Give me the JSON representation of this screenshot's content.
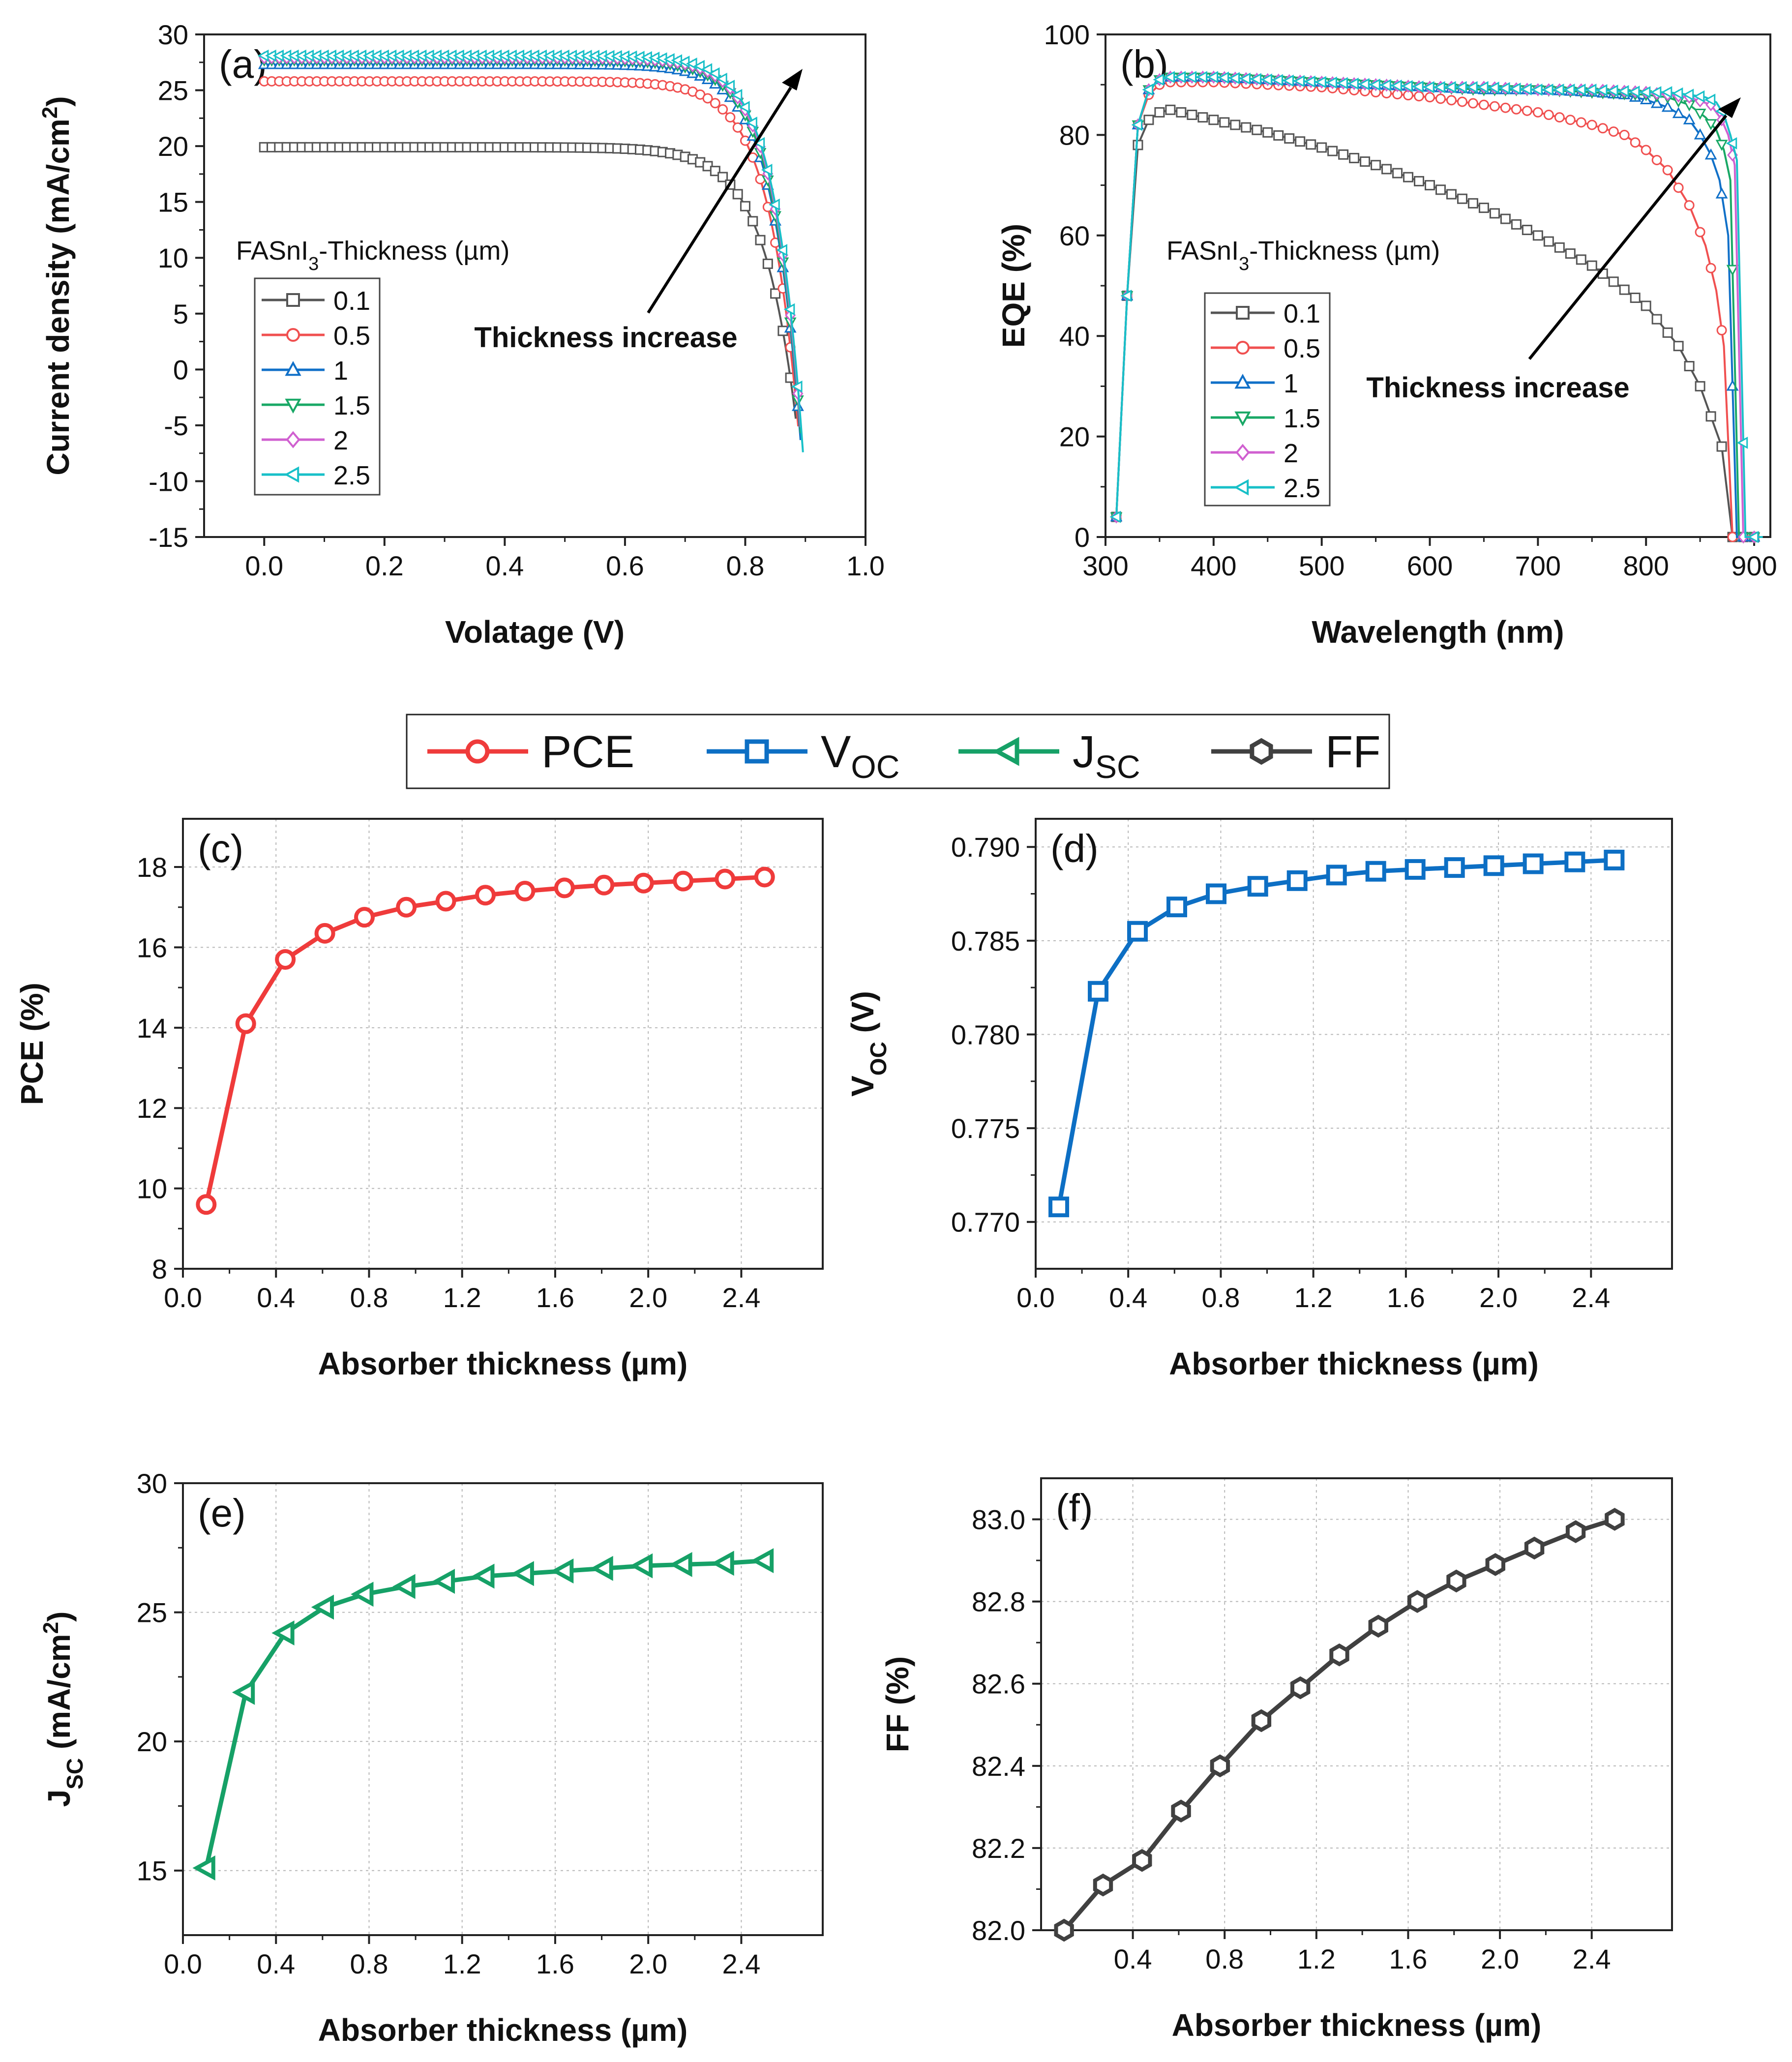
{
  "figure_legend": {
    "items": [
      {
        "label": "PCE",
        "sub": "",
        "color": "#ef3b3b",
        "marker": "circle"
      },
      {
        "label": "V",
        "sub": "OC",
        "color": "#0d6fc4",
        "marker": "square"
      },
      {
        "label": "J",
        "sub": "SC",
        "color": "#16a167",
        "marker": "triangle-left"
      },
      {
        "label": "FF",
        "sub": "",
        "color": "#404040",
        "marker": "hexagon"
      }
    ]
  },
  "chart_data": [
    {
      "id": "a",
      "panel_label": "(a)",
      "type": "line",
      "xlabel": "Volatage (V)",
      "ylabel": "Current density (mA/cm²)",
      "xlim": [
        -0.1,
        1.0
      ],
      "ylim": [
        -15,
        30
      ],
      "xticks": [
        0.0,
        0.2,
        0.4,
        0.6,
        0.8,
        1.0
      ],
      "xtick_labels": [
        "0.0",
        "0.2",
        "0.4",
        "0.6",
        "0.8",
        "1.0"
      ],
      "yticks": [
        -15,
        -10,
        -5,
        0,
        5,
        10,
        15,
        20,
        25,
        30
      ],
      "ytick_labels": [
        "-15",
        "-10",
        "-5",
        "0",
        "5",
        "10",
        "15",
        "20",
        "25",
        "30"
      ],
      "legend_title": "FASnI3-Thickness (µm)",
      "annotation": "Thickness increase",
      "series": [
        {
          "name": "0.1",
          "color": "#555555",
          "marker": "square",
          "jsc": 19.9,
          "voc": 0.873,
          "knee": 0.055
        },
        {
          "name": "0.5",
          "color": "#f05050",
          "marker": "circle",
          "jsc": 25.8,
          "voc": 0.879,
          "knee": 0.05
        },
        {
          "name": "1",
          "color": "#1070c8",
          "marker": "triangle-up",
          "jsc": 27.3,
          "voc": 0.882,
          "knee": 0.048
        },
        {
          "name": "1.5",
          "color": "#19a866",
          "marker": "triangle-down",
          "jsc": 27.7,
          "voc": 0.883,
          "knee": 0.048
        },
        {
          "name": "2",
          "color": "#d060d0",
          "marker": "diamond",
          "jsc": 27.9,
          "voc": 0.884,
          "knee": 0.047
        },
        {
          "name": "2.5",
          "color": "#18c0c8",
          "marker": "triangle-left",
          "jsc": 28.1,
          "voc": 0.885,
          "knee": 0.047
        }
      ]
    },
    {
      "id": "b",
      "panel_label": "(b)",
      "type": "line",
      "xlabel": "Wavelength (nm)",
      "ylabel": "EQE (%)",
      "xlim": [
        300,
        915
      ],
      "ylim": [
        0,
        100
      ],
      "xticks": [
        300,
        400,
        500,
        600,
        700,
        800,
        900
      ],
      "xtick_labels": [
        "300",
        "400",
        "500",
        "600",
        "700",
        "800",
        "900"
      ],
      "yticks": [
        0,
        20,
        40,
        60,
        80,
        100
      ],
      "ytick_labels": [
        "0",
        "20",
        "40",
        "60",
        "80",
        "100"
      ],
      "legend_title": "FASnI3-Thickness (µm)",
      "annotation": "Thickness increase",
      "series": [
        {
          "name": "0.1",
          "color": "#555555",
          "marker": "square",
          "x": [
            310,
            320,
            330,
            340,
            350,
            360,
            380,
            400,
            450,
            500,
            550,
            600,
            650,
            700,
            750,
            800,
            830,
            850,
            870,
            880,
            890,
            900
          ],
          "y": [
            4,
            48,
            78,
            83,
            84.5,
            85,
            84,
            83,
            80.5,
            77.5,
            74,
            70,
            65.5,
            60,
            54,
            46,
            38,
            30,
            18,
            0,
            0,
            0
          ]
        },
        {
          "name": "0.5",
          "color": "#f05050",
          "marker": "circle",
          "x": [
            310,
            320,
            330,
            340,
            350,
            360,
            400,
            450,
            500,
            550,
            600,
            650,
            700,
            750,
            780,
            800,
            820,
            840,
            855,
            865,
            872,
            880,
            890,
            900
          ],
          "y": [
            4,
            48,
            82,
            88,
            90,
            90.5,
            90.5,
            90,
            89.5,
            88.5,
            87.5,
            86,
            84.5,
            82,
            80,
            77,
            73,
            66,
            58,
            49,
            38,
            0,
            0,
            0
          ]
        },
        {
          "name": "1",
          "color": "#1070c8",
          "marker": "triangle-up",
          "x": [
            310,
            320,
            330,
            340,
            350,
            360,
            400,
            450,
            500,
            550,
            600,
            650,
            700,
            750,
            780,
            800,
            820,
            840,
            850,
            860,
            868,
            876,
            884,
            892,
            900
          ],
          "y": [
            4,
            48,
            82,
            89,
            91,
            91.5,
            91.5,
            91,
            90.5,
            90,
            89.5,
            89,
            89,
            88.5,
            88,
            87,
            85.5,
            83,
            80,
            76,
            71,
            60,
            0,
            0,
            0
          ]
        },
        {
          "name": "1.5",
          "color": "#19a866",
          "marker": "triangle-down",
          "x": [
            310,
            320,
            330,
            340,
            350,
            360,
            400,
            450,
            500,
            550,
            600,
            650,
            700,
            750,
            800,
            820,
            840,
            855,
            865,
            872,
            878,
            886,
            894,
            902
          ],
          "y": [
            4,
            48,
            82,
            89,
            91,
            91.5,
            91.5,
            91,
            90.5,
            90,
            89.5,
            89,
            89,
            88.5,
            88,
            87.5,
            86,
            83.5,
            81,
            77,
            71,
            0,
            0,
            0
          ]
        },
        {
          "name": "2",
          "color": "#d060d0",
          "marker": "diamond",
          "x": [
            310,
            320,
            330,
            340,
            350,
            360,
            400,
            450,
            500,
            550,
            600,
            650,
            700,
            750,
            800,
            820,
            840,
            860,
            870,
            876,
            882,
            890,
            898,
            906
          ],
          "y": [
            4,
            48,
            82,
            89,
            91,
            91.5,
            91.5,
            91,
            90.5,
            90,
            89.5,
            89.5,
            89,
            89,
            88.5,
            88,
            87.5,
            86,
            83,
            80,
            74,
            0,
            0,
            0
          ]
        },
        {
          "name": "2.5",
          "color": "#18c0c8",
          "marker": "triangle-left",
          "x": [
            310,
            320,
            330,
            340,
            350,
            360,
            400,
            450,
            500,
            550,
            600,
            650,
            700,
            750,
            800,
            820,
            840,
            855,
            865,
            872,
            878,
            884,
            892,
            900,
            908
          ],
          "y": [
            4,
            48,
            82,
            89,
            91,
            91.5,
            91.5,
            91,
            90.5,
            90,
            89.5,
            89.5,
            89,
            89,
            88.5,
            88.5,
            88,
            87.5,
            86.5,
            84,
            80,
            75,
            0,
            0,
            0
          ]
        }
      ]
    },
    {
      "id": "c",
      "panel_label": "(c)",
      "type": "line",
      "xlabel": "Absorber thickness (µm)",
      "ylabel": "PCE (%)",
      "xlim": [
        0.0,
        2.75
      ],
      "ylim": [
        8,
        19.2
      ],
      "xticks": [
        0.0,
        0.4,
        0.8,
        1.2,
        1.6,
        2.0,
        2.4
      ],
      "xtick_labels": [
        "0.0",
        "0.4",
        "0.8",
        "1.2",
        "1.6",
        "2.0",
        "2.4"
      ],
      "yticks": [
        8,
        10,
        12,
        14,
        16,
        18
      ],
      "ytick_labels": [
        "8",
        "10",
        "12",
        "14",
        "16",
        "18"
      ],
      "series": [
        {
          "name": "PCE",
          "color": "#ef3b3b",
          "marker": "circle",
          "x": [
            0.1,
            0.27,
            0.44,
            0.61,
            0.78,
            0.96,
            1.13,
            1.3,
            1.47,
            1.64,
            1.81,
            1.98,
            2.15,
            2.33,
            2.5
          ],
          "y": [
            9.6,
            14.1,
            15.7,
            16.35,
            16.75,
            17.0,
            17.15,
            17.3,
            17.4,
            17.48,
            17.55,
            17.6,
            17.65,
            17.7,
            17.75
          ]
        }
      ]
    },
    {
      "id": "d",
      "panel_label": "(d)",
      "type": "line",
      "xlabel": "Absorber thickness (µm)",
      "ylabel": "VOC (V)",
      "xlim": [
        0.0,
        2.75
      ],
      "ylim": [
        0.7675,
        0.7915
      ],
      "xticks": [
        0.0,
        0.4,
        0.8,
        1.2,
        1.6,
        2.0,
        2.4
      ],
      "xtick_labels": [
        "0.0",
        "0.4",
        "0.8",
        "1.2",
        "1.6",
        "2.0",
        "2.4"
      ],
      "yticks": [
        0.77,
        0.775,
        0.78,
        0.785,
        0.79
      ],
      "ytick_labels": [
        "0.770",
        "0.775",
        "0.780",
        "0.785",
        "0.790"
      ],
      "series": [
        {
          "name": "VOC",
          "color": "#0d6fc4",
          "marker": "square",
          "x": [
            0.1,
            0.27,
            0.44,
            0.61,
            0.78,
            0.96,
            1.13,
            1.3,
            1.47,
            1.64,
            1.81,
            1.98,
            2.15,
            2.33,
            2.5
          ],
          "y": [
            0.7708,
            0.7823,
            0.7855,
            0.7868,
            0.7875,
            0.7879,
            0.7882,
            0.7885,
            0.7887,
            0.7888,
            0.7889,
            0.789,
            0.7891,
            0.7892,
            0.7893
          ]
        }
      ]
    },
    {
      "id": "e",
      "panel_label": "(e)",
      "type": "line",
      "xlabel": "Absorber thickness (µm)",
      "ylabel": "JSC (mA/cm²)",
      "xlim": [
        0.0,
        2.75
      ],
      "ylim": [
        12.5,
        30
      ],
      "xticks": [
        0.0,
        0.4,
        0.8,
        1.2,
        1.6,
        2.0,
        2.4
      ],
      "xtick_labels": [
        "0.0",
        "0.4",
        "0.8",
        "1.2",
        "1.6",
        "2.0",
        "2.4"
      ],
      "yticks": [
        15,
        20,
        25,
        30
      ],
      "ytick_labels": [
        "15",
        "20",
        "25",
        "30"
      ],
      "series": [
        {
          "name": "JSC",
          "color": "#16a167",
          "marker": "triangle-left",
          "x": [
            0.1,
            0.27,
            0.44,
            0.61,
            0.78,
            0.96,
            1.13,
            1.3,
            1.47,
            1.64,
            1.81,
            1.98,
            2.15,
            2.33,
            2.5
          ],
          "y": [
            15.1,
            21.9,
            24.2,
            25.2,
            25.7,
            26.0,
            26.2,
            26.4,
            26.5,
            26.6,
            26.7,
            26.8,
            26.85,
            26.9,
            27.0
          ]
        }
      ]
    },
    {
      "id": "f",
      "panel_label": "(f)",
      "type": "line",
      "xlabel": "Absorber thickness (µm)",
      "ylabel": "FF (%)",
      "xlim": [
        0.0,
        2.75
      ],
      "ylim": [
        82.0,
        83.1
      ],
      "xticks": [
        0.4,
        0.8,
        1.2,
        1.6,
        2.0,
        2.4
      ],
      "xtick_labels": [
        "0.4",
        "0.8",
        "1.2",
        "1.6",
        "2.0",
        "2.4"
      ],
      "yticks": [
        82.0,
        82.2,
        82.4,
        82.6,
        82.8,
        83.0
      ],
      "ytick_labels": [
        "82.0",
        "82.2",
        "82.4",
        "82.6",
        "82.8",
        "83.0"
      ],
      "series": [
        {
          "name": "FF",
          "color": "#404040",
          "marker": "hexagon",
          "x": [
            0.1,
            0.27,
            0.44,
            0.61,
            0.78,
            0.96,
            1.13,
            1.3,
            1.47,
            1.64,
            1.81,
            1.98,
            2.15,
            2.33,
            2.5
          ],
          "y": [
            82.0,
            82.11,
            82.17,
            82.29,
            82.4,
            82.51,
            82.59,
            82.67,
            82.74,
            82.8,
            82.85,
            82.89,
            82.93,
            82.97,
            83.0
          ]
        }
      ]
    }
  ]
}
